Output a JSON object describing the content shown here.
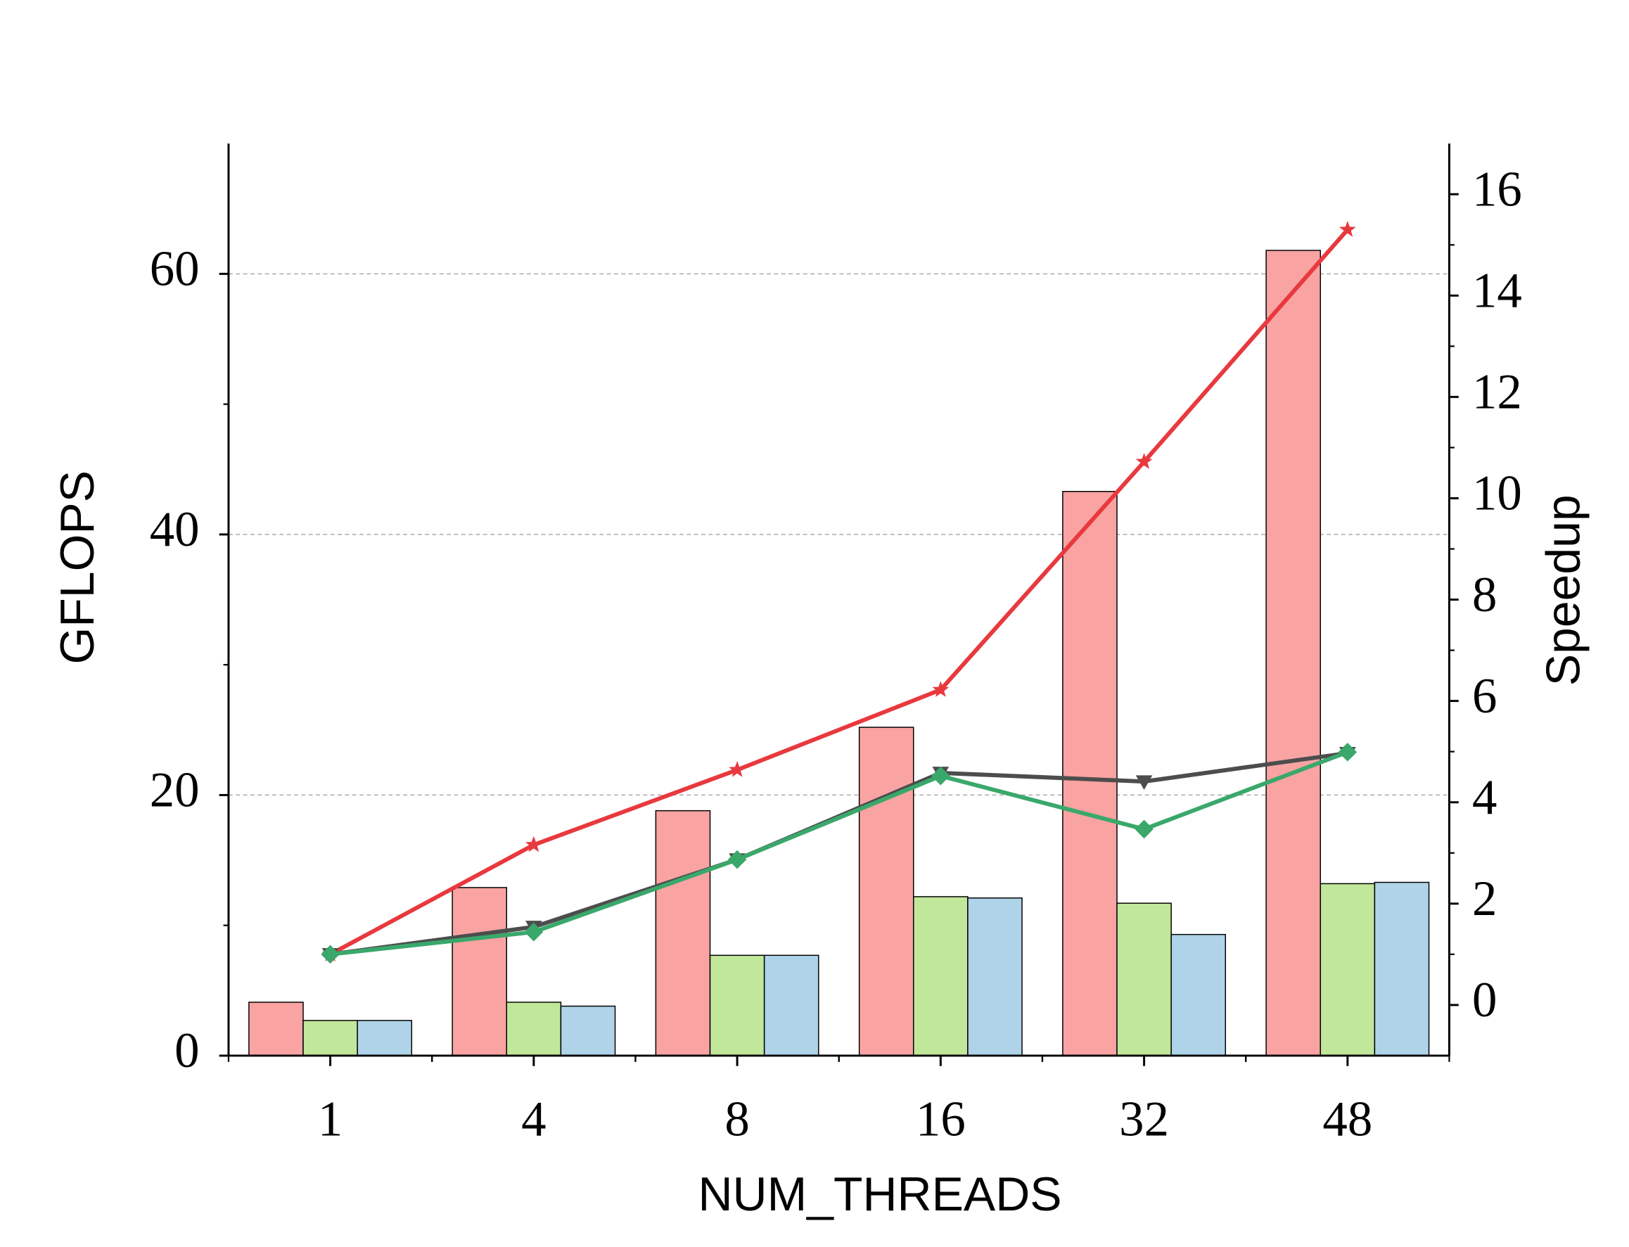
{
  "chart_data": {
    "type": "bar",
    "x_label": "NUM_THREADS",
    "y_label": "GFLOPS",
    "y2_label": "Speedup",
    "categories": [
      "1",
      "4",
      "8",
      "16",
      "32",
      "48"
    ],
    "series": [
      {
        "type": "bar",
        "color": "#f9a3a3",
        "values": [
          4.1,
          12.9,
          18.8,
          25.2,
          43.3,
          61.8
        ]
      },
      {
        "type": "bar",
        "color": "#c1e79a",
        "values": [
          2.7,
          4.1,
          7.7,
          12.2,
          11.7,
          13.2
        ]
      },
      {
        "type": "bar",
        "color": "#afd3e8",
        "values": [
          2.7,
          3.8,
          7.7,
          12.1,
          9.3,
          13.3
        ]
      },
      {
        "type": "line",
        "axis": "y2",
        "marker": "star",
        "color": "#e8393e",
        "values": [
          1.0,
          3.16,
          4.64,
          6.22,
          10.72,
          15.3
        ]
      },
      {
        "type": "line",
        "axis": "y2",
        "marker": "triangle",
        "color": "#4d4d4d",
        "values": [
          1.0,
          1.54,
          2.87,
          4.58,
          4.41,
          4.97
        ]
      },
      {
        "type": "line",
        "axis": "y2",
        "marker": "diamond",
        "color": "#3aa86b",
        "values": [
          1.0,
          1.44,
          2.87,
          4.52,
          3.47,
          4.99
        ]
      }
    ],
    "ylim": [
      0,
      70
    ],
    "yticks": [
      0,
      20,
      40,
      60
    ],
    "y2lim": [
      -1,
      17
    ],
    "y2ticks": [
      0,
      2,
      4,
      6,
      8,
      10,
      12,
      14,
      16
    ],
    "grid": true
  }
}
